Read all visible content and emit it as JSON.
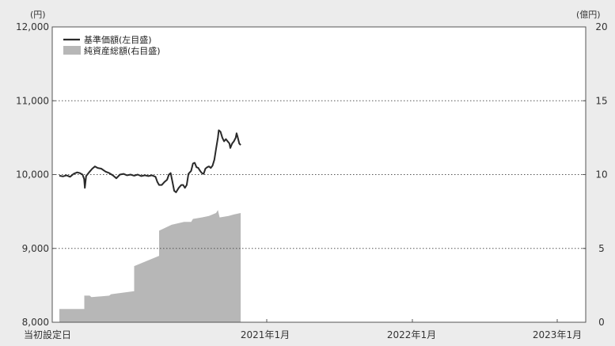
{
  "chart_data": {
    "type": "line",
    "x_labels": [
      "当初設定日",
      "2021年1月",
      "2022年1月",
      "2023年1月"
    ],
    "left_axis": {
      "unit": "(円)",
      "range": [
        8000,
        12000
      ],
      "ticks": [
        8000,
        9000,
        10000,
        11000,
        12000
      ],
      "tick_labels": [
        "8,000",
        "9,000",
        "10,000",
        "11,000",
        "12,000"
      ]
    },
    "right_axis": {
      "unit": "(億円)",
      "range": [
        0,
        20
      ],
      "ticks": [
        0,
        5,
        10,
        15,
        20
      ],
      "tick_labels": [
        "0",
        "5",
        "10",
        "15",
        "20"
      ]
    },
    "grid": "horizontal dotted",
    "legend_position": "top-left",
    "colors": {
      "nav_line": "#2a2a2a",
      "assets_area": "#b7b7b7",
      "background": "#ffffff"
    },
    "series": [
      {
        "name": "基準価額(左目盛)",
        "axis": "left",
        "style": "line",
        "points": [
          [
            0.0,
            9985
          ],
          [
            0.02,
            9975
          ],
          [
            0.04,
            9990
          ],
          [
            0.06,
            9970
          ],
          [
            0.08,
            10010
          ],
          [
            0.1,
            10030
          ],
          [
            0.115,
            10020
          ],
          [
            0.13,
            10000
          ],
          [
            0.139,
            9940
          ],
          [
            0.143,
            9820
          ],
          [
            0.15,
            9980
          ],
          [
            0.17,
            10040
          ],
          [
            0.185,
            10080
          ],
          [
            0.2,
            10110
          ],
          [
            0.215,
            10090
          ],
          [
            0.235,
            10080
          ],
          [
            0.26,
            10040
          ],
          [
            0.28,
            10020
          ],
          [
            0.3,
            9990
          ],
          [
            0.32,
            9950
          ],
          [
            0.34,
            10000
          ],
          [
            0.36,
            10010
          ],
          [
            0.38,
            9990
          ],
          [
            0.4,
            10000
          ],
          [
            0.42,
            9985
          ],
          [
            0.44,
            10000
          ],
          [
            0.46,
            9980
          ],
          [
            0.48,
            9990
          ],
          [
            0.5,
            9980
          ],
          [
            0.52,
            9990
          ],
          [
            0.54,
            9970
          ],
          [
            0.55,
            9900
          ],
          [
            0.56,
            9860
          ],
          [
            0.575,
            9860
          ],
          [
            0.59,
            9900
          ],
          [
            0.605,
            9930
          ],
          [
            0.615,
            10000
          ],
          [
            0.625,
            10020
          ],
          [
            0.635,
            9900
          ],
          [
            0.645,
            9780
          ],
          [
            0.655,
            9760
          ],
          [
            0.67,
            9820
          ],
          [
            0.685,
            9860
          ],
          [
            0.695,
            9860
          ],
          [
            0.705,
            9820
          ],
          [
            0.715,
            9860
          ],
          [
            0.725,
            10010
          ],
          [
            0.74,
            10050
          ],
          [
            0.75,
            10150
          ],
          [
            0.76,
            10160
          ],
          [
            0.77,
            10100
          ],
          [
            0.78,
            10090
          ],
          [
            0.79,
            10050
          ],
          [
            0.8,
            10020
          ],
          [
            0.81,
            10010
          ],
          [
            0.82,
            10080
          ],
          [
            0.83,
            10100
          ],
          [
            0.84,
            10110
          ],
          [
            0.85,
            10090
          ],
          [
            0.86,
            10120
          ],
          [
            0.87,
            10200
          ],
          [
            0.88,
            10350
          ],
          [
            0.89,
            10500
          ],
          [
            0.895,
            10600
          ],
          [
            0.905,
            10580
          ],
          [
            0.915,
            10500
          ],
          [
            0.925,
            10450
          ],
          [
            0.935,
            10480
          ],
          [
            0.945,
            10450
          ],
          [
            0.955,
            10420
          ],
          [
            0.96,
            10360
          ],
          [
            0.97,
            10420
          ],
          [
            0.98,
            10450
          ],
          [
            0.99,
            10500
          ],
          [
            0.995,
            10560
          ],
          [
            1.0,
            10520
          ],
          [
            1.01,
            10420
          ],
          [
            1.018,
            10400
          ]
        ]
      },
      {
        "name": "純資産総額(右目盛)",
        "axis": "right",
        "style": "area",
        "points": [
          [
            0.0,
            0.9
          ],
          [
            0.14,
            0.9
          ],
          [
            0.14,
            1.8
          ],
          [
            0.15,
            1.8
          ],
          [
            0.17,
            1.8
          ],
          [
            0.18,
            1.7
          ],
          [
            0.28,
            1.8
          ],
          [
            0.29,
            1.9
          ],
          [
            0.42,
            2.1
          ],
          [
            0.42,
            3.8
          ],
          [
            0.56,
            4.5
          ],
          [
            0.56,
            6.2
          ],
          [
            0.63,
            6.6
          ],
          [
            0.7,
            6.8
          ],
          [
            0.74,
            6.8
          ],
          [
            0.75,
            7.0
          ],
          [
            0.8,
            7.1
          ],
          [
            0.84,
            7.2
          ],
          [
            0.88,
            7.4
          ],
          [
            0.89,
            7.6
          ],
          [
            0.9,
            7.1
          ],
          [
            0.95,
            7.2
          ],
          [
            0.98,
            7.3
          ],
          [
            1.018,
            7.4
          ]
        ]
      }
    ]
  }
}
